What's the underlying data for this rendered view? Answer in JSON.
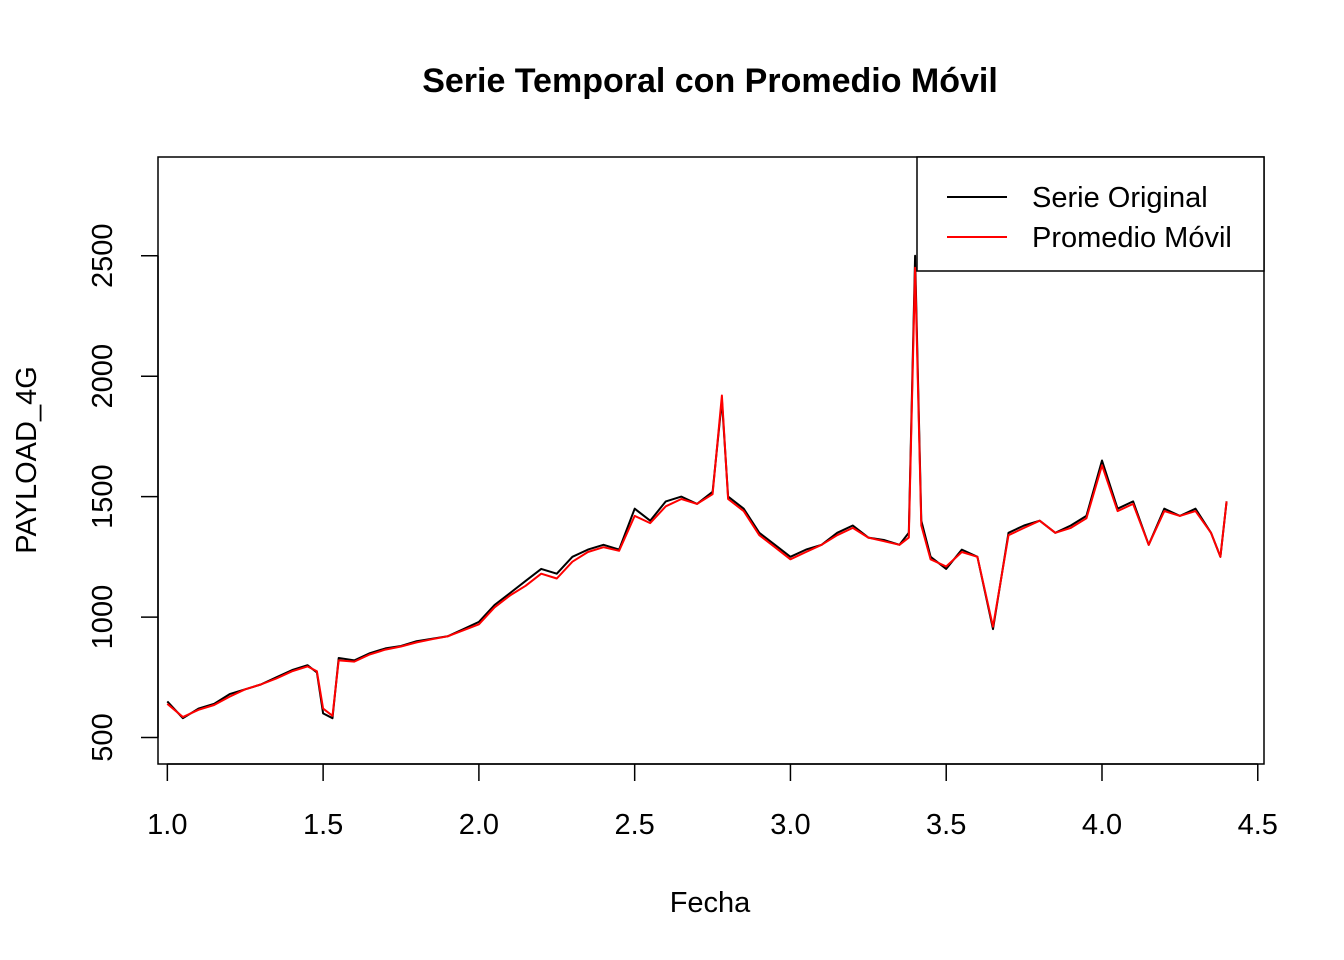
{
  "chart_data": {
    "type": "line",
    "title": "Serie Temporal con Promedio Móvil",
    "xlabel": "Fecha",
    "ylabel": "PAYLOAD_4G",
    "xlim": [
      0.97,
      4.52
    ],
    "ylim": [
      390,
      2910
    ],
    "x_ticks": [
      1.0,
      1.5,
      2.0,
      2.5,
      3.0,
      3.5,
      4.0,
      4.5
    ],
    "x_tick_labels": [
      "1.0",
      "1.5",
      "2.0",
      "2.5",
      "3.0",
      "3.5",
      "4.0",
      "4.5"
    ],
    "y_ticks": [
      500,
      1000,
      1500,
      2000,
      2500
    ],
    "y_tick_labels": [
      "500",
      "1000",
      "1500",
      "2000",
      "2500"
    ],
    "legend": {
      "position": "top-right"
    },
    "grid": false,
    "series": [
      {
        "name": "Serie Original",
        "color": "#000000",
        "x": [
          1.0,
          1.05,
          1.1,
          1.15,
          1.2,
          1.25,
          1.3,
          1.35,
          1.4,
          1.45,
          1.48,
          1.5,
          1.53,
          1.55,
          1.6,
          1.65,
          1.7,
          1.75,
          1.8,
          1.85,
          1.9,
          1.95,
          2.0,
          2.05,
          2.1,
          2.15,
          2.2,
          2.25,
          2.3,
          2.35,
          2.4,
          2.45,
          2.5,
          2.55,
          2.6,
          2.65,
          2.7,
          2.75,
          2.78,
          2.8,
          2.85,
          2.9,
          2.95,
          3.0,
          3.05,
          3.1,
          3.15,
          3.2,
          3.25,
          3.3,
          3.35,
          3.38,
          3.4,
          3.42,
          3.45,
          3.5,
          3.55,
          3.6,
          3.65,
          3.7,
          3.75,
          3.8,
          3.85,
          3.9,
          3.95,
          4.0,
          4.05,
          4.1,
          4.15,
          4.2,
          4.25,
          4.3,
          4.35,
          4.38,
          4.4
        ],
        "values": [
          650,
          580,
          620,
          640,
          680,
          700,
          720,
          750,
          780,
          800,
          770,
          600,
          580,
          830,
          820,
          850,
          870,
          880,
          900,
          910,
          920,
          950,
          980,
          1050,
          1100,
          1150,
          1200,
          1180,
          1250,
          1280,
          1300,
          1280,
          1450,
          1400,
          1480,
          1500,
          1470,
          1520,
          1900,
          1500,
          1450,
          1350,
          1300,
          1250,
          1280,
          1300,
          1350,
          1380,
          1330,
          1320,
          1300,
          1350,
          2500,
          1400,
          1250,
          1200,
          1280,
          1250,
          950,
          1350,
          1380,
          1400,
          1350,
          1380,
          1420,
          1650,
          1450,
          1480,
          1300,
          1450,
          1420,
          1450,
          1350,
          1250,
          1480
        ]
      },
      {
        "name": "Promedio Móvil",
        "color": "#ff0000",
        "x": [
          1.0,
          1.05,
          1.1,
          1.15,
          1.2,
          1.25,
          1.3,
          1.35,
          1.4,
          1.45,
          1.48,
          1.5,
          1.53,
          1.55,
          1.6,
          1.65,
          1.7,
          1.75,
          1.8,
          1.85,
          1.9,
          1.95,
          2.0,
          2.05,
          2.1,
          2.15,
          2.2,
          2.25,
          2.3,
          2.35,
          2.4,
          2.45,
          2.5,
          2.55,
          2.6,
          2.65,
          2.7,
          2.75,
          2.78,
          2.8,
          2.85,
          2.9,
          2.95,
          3.0,
          3.05,
          3.1,
          3.15,
          3.2,
          3.25,
          3.3,
          3.35,
          3.38,
          3.4,
          3.42,
          3.45,
          3.5,
          3.55,
          3.6,
          3.65,
          3.7,
          3.75,
          3.8,
          3.85,
          3.9,
          3.95,
          4.0,
          4.05,
          4.1,
          4.15,
          4.2,
          4.25,
          4.3,
          4.35,
          4.38,
          4.4
        ],
        "values": [
          640,
          585,
          615,
          635,
          670,
          700,
          720,
          745,
          775,
          795,
          775,
          620,
          590,
          820,
          815,
          845,
          865,
          878,
          895,
          908,
          920,
          945,
          970,
          1040,
          1090,
          1130,
          1180,
          1160,
          1230,
          1270,
          1290,
          1275,
          1420,
          1390,
          1460,
          1490,
          1470,
          1510,
          1920,
          1490,
          1440,
          1340,
          1290,
          1240,
          1270,
          1300,
          1340,
          1370,
          1330,
          1315,
          1300,
          1330,
          2450,
          1380,
          1240,
          1210,
          1270,
          1250,
          960,
          1340,
          1370,
          1400,
          1350,
          1370,
          1410,
          1630,
          1440,
          1470,
          1300,
          1440,
          1420,
          1440,
          1350,
          1250,
          1480
        ]
      }
    ]
  }
}
